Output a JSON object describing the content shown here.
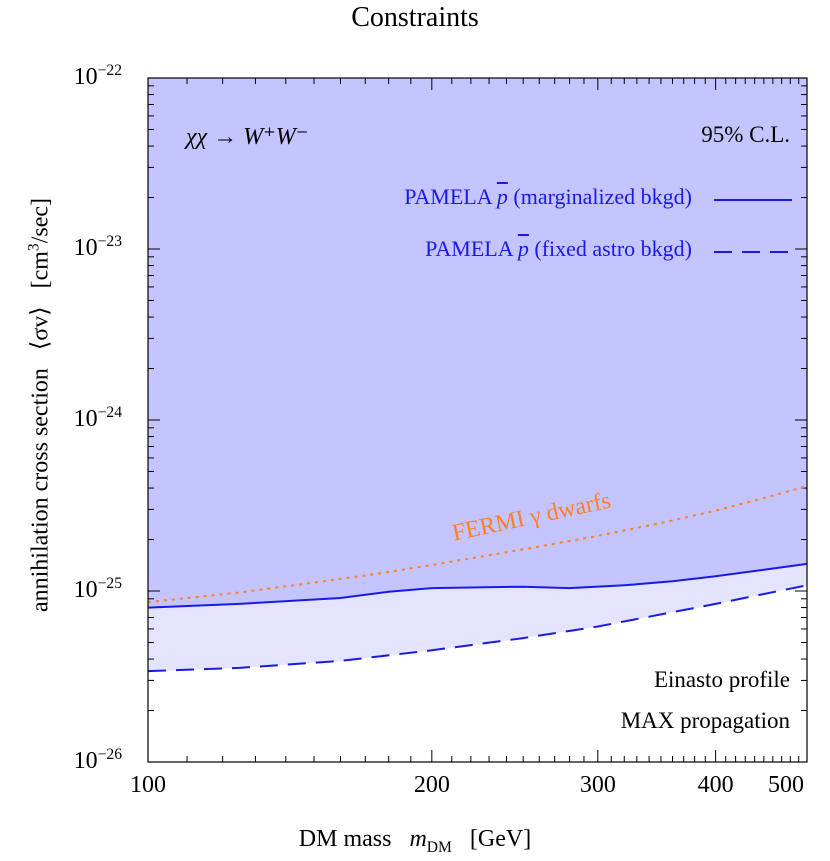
{
  "chart_data": {
    "type": "line",
    "title": "Constraints",
    "xlabel": {
      "prefix": "DM mass",
      "symbol": "m",
      "symbol_sub": "DM",
      "unit": "[GeV]"
    },
    "ylabel": {
      "prefix": "annihilation cross section",
      "symbol": "⟨σv⟩",
      "unit_pre": "[cm",
      "unit_sup": "3",
      "unit_post": "/sec]"
    },
    "xscale": "log",
    "yscale": "log",
    "xlim": [
      100,
      500
    ],
    "ylim": [
      1e-26,
      1e-22
    ],
    "x_ticks": [
      100,
      200,
      300,
      400,
      500
    ],
    "x_tick_labels": [
      "100",
      "200",
      "300",
      "400",
      "500"
    ],
    "y_ticks": [
      {
        "value": 1e-22,
        "base": "10",
        "exp": "−22"
      },
      {
        "value": 1e-23,
        "base": "10",
        "exp": "−23"
      },
      {
        "value": 1e-24,
        "base": "10",
        "exp": "−24"
      },
      {
        "value": 1e-25,
        "base": "10",
        "exp": "−25"
      },
      {
        "value": 1e-26,
        "base": "10",
        "exp": "−26"
      }
    ],
    "series": [
      {
        "name": "PAMELA p̄ (marginalized bkgd)",
        "style": "solid",
        "color": "#1a1ae6",
        "x": [
          100,
          125,
          160,
          180,
          200,
          250,
          280,
          320,
          360,
          400,
          450,
          500
        ],
        "y": [
          8e-26,
          8.4e-26,
          9.1e-26,
          9.9e-26,
          1.04e-25,
          1.06e-25,
          1.04e-25,
          1.08e-25,
          1.14e-25,
          1.22e-25,
          1.33e-25,
          1.44e-25
        ]
      },
      {
        "name": "PAMELA p̄ (fixed astro bkgd)",
        "style": "dashed",
        "color": "#1a1ae6",
        "x": [
          100,
          125,
          160,
          200,
          250,
          300,
          350,
          400,
          450,
          500
        ],
        "y": [
          3.4e-26,
          3.55e-26,
          3.9e-26,
          4.5e-26,
          5.3e-26,
          6.2e-26,
          7.3e-26,
          8.4e-26,
          9.6e-26,
          1.08e-25
        ]
      },
      {
        "name": "FERMI γ dwarfs",
        "style": "dotted",
        "color": "#ff7f24",
        "x": [
          100,
          125,
          150,
          175,
          200,
          250,
          300,
          350,
          400,
          450,
          500
        ],
        "y": [
          8.6e-26,
          9.8e-26,
          1.12e-25,
          1.26e-25,
          1.42e-25,
          1.75e-25,
          2.1e-25,
          2.5e-25,
          2.95e-25,
          3.5e-25,
          4.1e-25
        ]
      }
    ],
    "annotations": {
      "process": "χχ → W⁺W⁻",
      "confidence": "95% C.L.",
      "fermi_label": "FERMI γ dwarfs",
      "profile": "Einasto profile",
      "propagation": "MAX propagation"
    },
    "legend": {
      "position": "top-right",
      "entries": [
        {
          "prefix": "PAMELA ",
          "pbar": "p",
          "suffix": " (marginalized bkgd)",
          "style": "solid"
        },
        {
          "prefix": "PAMELA ",
          "pbar": "p",
          "suffix": " (fixed astro bkgd)",
          "style": "dashed"
        }
      ]
    },
    "colors": {
      "excluded_fill": "#c4c4ff",
      "band_fill": "#e4e4ff",
      "pamela": "#1a1ae6",
      "fermi": "#ff7f24"
    }
  }
}
